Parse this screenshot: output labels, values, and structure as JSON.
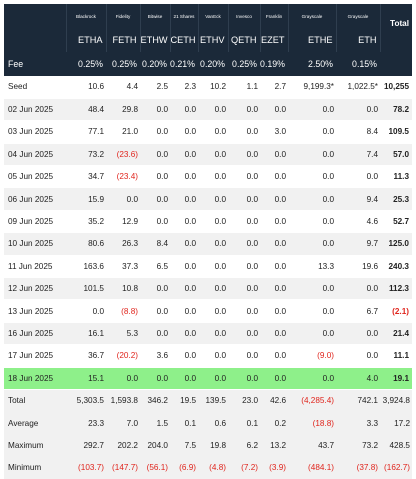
{
  "columns": [
    {
      "issuer": "Blackrock",
      "ticker": "ETHA",
      "fee": "0.25%"
    },
    {
      "issuer": "Fidelity",
      "ticker": "FETH",
      "fee": "0.25%"
    },
    {
      "issuer": "Bitwise",
      "ticker": "ETHW",
      "fee": "0.20%"
    },
    {
      "issuer": "21 Shares",
      "ticker": "CETH",
      "fee": "0.21%"
    },
    {
      "issuer": "VanEck",
      "ticker": "ETHV",
      "fee": "0.20%"
    },
    {
      "issuer": "Invesco",
      "ticker": "QETH",
      "fee": "0.25%"
    },
    {
      "issuer": "Franklin",
      "ticker": "EZET",
      "fee": "0.19%"
    },
    {
      "issuer": "Grayscale",
      "ticker": "ETHE",
      "fee": "2.50%"
    },
    {
      "issuer": "Grayscale",
      "ticker": "ETH",
      "fee": "0.15%"
    }
  ],
  "header": {
    "total_label": "Total",
    "fee_label": "Fee"
  },
  "rows": [
    {
      "label": "Seed",
      "values": [
        "10.6",
        "4.4",
        "2.5",
        "2.3",
        "10.2",
        "1.1",
        "2.7",
        "9,199.3*",
        "1,022.5*"
      ],
      "total": "10,255",
      "neg": [],
      "highlight": false
    },
    {
      "label": "02 Jun 2025",
      "values": [
        "48.4",
        "29.8",
        "0.0",
        "0.0",
        "0.0",
        "0.0",
        "0.0",
        "0.0",
        "0.0"
      ],
      "total": "78.2",
      "neg": [],
      "highlight": false
    },
    {
      "label": "03 Jun 2025",
      "values": [
        "77.1",
        "21.0",
        "0.0",
        "0.0",
        "0.0",
        "0.0",
        "3.0",
        "0.0",
        "8.4"
      ],
      "total": "109.5",
      "neg": [],
      "highlight": false
    },
    {
      "label": "04 Jun 2025",
      "values": [
        "73.2",
        "(23.6)",
        "0.0",
        "0.0",
        "0.0",
        "0.0",
        "0.0",
        "0.0",
        "7.4"
      ],
      "total": "57.0",
      "neg": [
        1
      ],
      "highlight": false
    },
    {
      "label": "05 Jun 2025",
      "values": [
        "34.7",
        "(23.4)",
        "0.0",
        "0.0",
        "0.0",
        "0.0",
        "0.0",
        "0.0",
        "0.0"
      ],
      "total": "11.3",
      "neg": [
        1
      ],
      "highlight": false
    },
    {
      "label": "06 Jun 2025",
      "values": [
        "15.9",
        "0.0",
        "0.0",
        "0.0",
        "0.0",
        "0.0",
        "0.0",
        "0.0",
        "9.4"
      ],
      "total": "25.3",
      "neg": [],
      "highlight": false
    },
    {
      "label": "09 Jun 2025",
      "values": [
        "35.2",
        "12.9",
        "0.0",
        "0.0",
        "0.0",
        "0.0",
        "0.0",
        "0.0",
        "4.6"
      ],
      "total": "52.7",
      "neg": [],
      "highlight": false
    },
    {
      "label": "10 Jun 2025",
      "values": [
        "80.6",
        "26.3",
        "8.4",
        "0.0",
        "0.0",
        "0.0",
        "0.0",
        "0.0",
        "9.7"
      ],
      "total": "125.0",
      "neg": [],
      "highlight": false
    },
    {
      "label": "11 Jun 2025",
      "values": [
        "163.6",
        "37.3",
        "6.5",
        "0.0",
        "0.0",
        "0.0",
        "0.0",
        "13.3",
        "19.6"
      ],
      "total": "240.3",
      "neg": [],
      "highlight": false
    },
    {
      "label": "12 Jun 2025",
      "values": [
        "101.5",
        "10.8",
        "0.0",
        "0.0",
        "0.0",
        "0.0",
        "0.0",
        "0.0",
        "0.0"
      ],
      "total": "112.3",
      "neg": [],
      "highlight": false
    },
    {
      "label": "13 Jun 2025",
      "values": [
        "0.0",
        "(8.8)",
        "0.0",
        "0.0",
        "0.0",
        "0.0",
        "0.0",
        "0.0",
        "6.7"
      ],
      "total": "(2.1)",
      "neg": [
        1,
        "total"
      ],
      "highlight": false
    },
    {
      "label": "16 Jun 2025",
      "values": [
        "16.1",
        "5.3",
        "0.0",
        "0.0",
        "0.0",
        "0.0",
        "0.0",
        "0.0",
        "0.0"
      ],
      "total": "21.4",
      "neg": [],
      "highlight": false
    },
    {
      "label": "17 Jun 2025",
      "values": [
        "36.7",
        "(20.2)",
        "3.6",
        "0.0",
        "0.0",
        "0.0",
        "0.0",
        "(9.0)",
        "0.0"
      ],
      "total": "11.1",
      "neg": [
        1,
        7
      ],
      "highlight": false
    },
    {
      "label": "18 Jun 2025",
      "values": [
        "15.1",
        "0.0",
        "0.0",
        "0.0",
        "0.0",
        "0.0",
        "0.0",
        "0.0",
        "4.0"
      ],
      "total": "19.1",
      "neg": [],
      "highlight": true
    }
  ],
  "summary": [
    {
      "label": "Total",
      "values": [
        "5,303.5",
        "1,593.8",
        "346.2",
        "19.5",
        "139.5",
        "23.0",
        "42.6",
        "(4,285.4)",
        "742.1"
      ],
      "total": "3,924.8",
      "neg": [
        7
      ]
    },
    {
      "label": "Average",
      "values": [
        "23.3",
        "7.0",
        "1.5",
        "0.1",
        "0.6",
        "0.1",
        "0.2",
        "(18.8)",
        "3.3"
      ],
      "total": "17.2",
      "neg": [
        7
      ]
    },
    {
      "label": "Maximum",
      "values": [
        "292.7",
        "202.2",
        "204.0",
        "7.5",
        "19.8",
        "6.2",
        "13.2",
        "43.7",
        "73.2"
      ],
      "total": "428.5",
      "neg": []
    },
    {
      "label": "Minimum",
      "values": [
        "(103.7)",
        "(147.7)",
        "(56.1)",
        "(6.9)",
        "(4.8)",
        "(7.2)",
        "(3.9)",
        "(484.1)",
        "(37.8)"
      ],
      "total": "(162.7)",
      "neg": [
        0,
        1,
        2,
        3,
        4,
        5,
        6,
        7,
        8,
        "total"
      ]
    }
  ],
  "colors": {
    "header_bg": "#1b2939",
    "highlight": "#8ef08a",
    "stripe": "#f1f1f1",
    "negative": "#e0251d"
  }
}
